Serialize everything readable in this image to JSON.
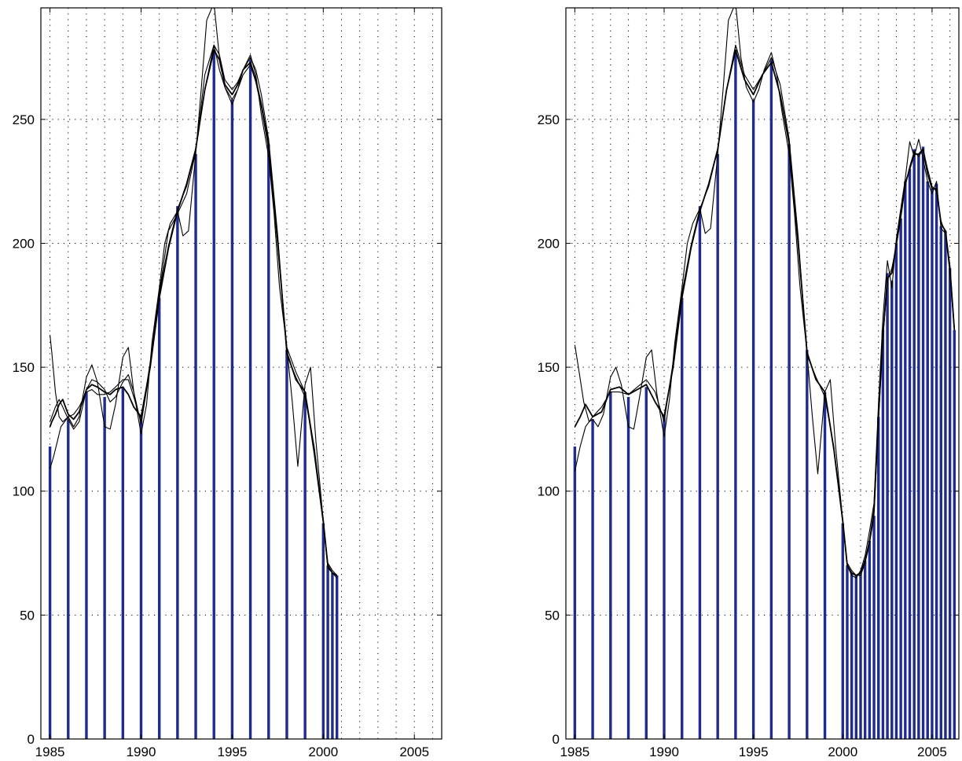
{
  "colors": {
    "bar": "#1f2b8e",
    "curve": "#000000",
    "grid": "#000000",
    "background": "#ffffff"
  },
  "chart_data": [
    {
      "type": "bar",
      "title": "",
      "xlabel": "",
      "ylabel": "",
      "xlim": [
        1984.5,
        2006.5
      ],
      "ylim": [
        0,
        295
      ],
      "xticks": [
        1985,
        1990,
        1995,
        2000,
        2005
      ],
      "xtick_labels": [
        "1985",
        "1990",
        "1995",
        "2000",
        "2005"
      ],
      "yticks": [
        0,
        50,
        100,
        150,
        200,
        250
      ],
      "ytick_labels": [
        "0",
        "50",
        "100",
        "150",
        "200",
        "250"
      ],
      "grid": true,
      "bars": {
        "x": [
          1985,
          1986,
          1987,
          1988,
          1989,
          1990,
          1991,
          1992,
          1993,
          1994,
          1995,
          1996,
          1997,
          1998,
          1999,
          2000,
          2000.25,
          2000.5,
          2000.75
        ],
        "values": [
          118,
          129,
          140,
          138,
          142,
          130,
          178,
          215,
          236,
          278,
          258,
          274,
          240,
          157,
          140,
          87,
          70,
          67,
          66
        ]
      },
      "series": [
        {
          "x": [
            1985,
            1985.1,
            1985.3,
            1985.5,
            1985.7,
            1986,
            1986.3,
            1986.6,
            1987,
            1987.3,
            1987.6,
            1988,
            1988.3,
            1988.6,
            1989,
            1989.3,
            1989.6,
            1990,
            1990.5,
            1991,
            1991.5,
            1992,
            1992.5,
            1993,
            1993.5,
            1994,
            1994.3,
            1994.6,
            1995,
            1995.3,
            1995.6,
            1996,
            1996.3,
            1996.6,
            1997,
            1997.5,
            1998,
            1998.5,
            1999,
            1999.5,
            2000,
            2000.25,
            2000.5,
            2000.75
          ],
          "values": [
            126,
            128,
            131,
            135,
            137,
            131,
            129,
            132,
            141,
            143,
            142,
            140,
            139,
            141,
            142,
            139,
            134,
            130,
            150,
            178,
            198,
            213,
            224,
            238,
            262,
            278,
            274,
            264,
            260,
            264,
            270,
            273,
            266,
            256,
            240,
            200,
            156,
            145,
            140,
            117,
            88,
            70,
            67,
            66
          ]
        },
        {
          "x": [
            1985,
            1985.2,
            1985.4,
            1985.6,
            1985.8,
            1986,
            1986.3,
            1986.6,
            1987,
            1987.3,
            1987.6,
            1988,
            1988.3,
            1988.6,
            1989,
            1989.3,
            1989.6,
            1990,
            1990.5,
            1991,
            1991.5,
            1992,
            1992.5,
            1993,
            1993.5,
            1994,
            1994.3,
            1994.6,
            1995,
            1995.3,
            1995.6,
            1996,
            1996.3,
            1996.6,
            1997,
            1997.5,
            1998,
            1998.5,
            1999,
            1999.5,
            2000,
            2000.25,
            2000.5,
            2000.75
          ],
          "values": [
            109,
            114,
            120,
            126,
            128,
            130,
            131,
            134,
            140,
            141,
            139,
            139,
            140,
            142,
            145,
            145,
            138,
            128,
            152,
            180,
            199,
            214,
            223,
            238,
            262,
            280,
            276,
            266,
            262,
            265,
            270,
            275,
            270,
            260,
            242,
            203,
            155,
            146,
            138,
            118,
            87,
            71,
            68,
            66
          ]
        },
        {
          "x": [
            1985,
            1985.1,
            1985.3,
            1985.5,
            1985.7,
            1986,
            1986.3,
            1986.6,
            1987,
            1987.3,
            1987.6,
            1988,
            1988.3,
            1988.6,
            1989,
            1989.3,
            1989.6,
            1990,
            1990.5,
            1991,
            1991.5,
            1992,
            1992.5,
            1993,
            1993.5,
            1994,
            1994.3,
            1994.6,
            1995,
            1995.3,
            1995.6,
            1996,
            1996.3,
            1996.6,
            1997,
            1997.5,
            1998,
            1998.5,
            1999,
            1999.5,
            2000,
            2000.25,
            2000.5,
            2000.75
          ],
          "values": [
            128,
            130,
            134,
            137,
            134,
            129,
            125,
            128,
            141,
            145,
            144,
            141,
            136,
            138,
            144,
            147,
            140,
            127,
            150,
            180,
            205,
            212,
            220,
            237,
            268,
            280,
            270,
            263,
            258,
            262,
            268,
            272,
            265,
            255,
            238,
            199,
            158,
            148,
            140,
            115,
            87,
            69,
            67,
            65
          ]
        },
        {
          "x": [
            1985,
            1985.1,
            1985.3,
            1985.5,
            1985.7,
            1986,
            1986.3,
            1986.6,
            1987,
            1987.3,
            1987.6,
            1988,
            1988.3,
            1988.6,
            1989,
            1989.3,
            1989.6,
            1990,
            1990.3,
            1990.6,
            1991,
            1991.3,
            1991.6,
            1992,
            1992.3,
            1992.6,
            1993,
            1993.3,
            1993.6,
            1994,
            1994.3,
            1994.6,
            1995,
            1995.3,
            1995.6,
            1996,
            1996.3,
            1996.6,
            1997,
            1997.3,
            1997.6,
            1998,
            1998.3,
            1998.6,
            1999,
            1999.3,
            1999.6,
            2000,
            2000.25,
            2000.5,
            2000.75
          ],
          "values": [
            163,
            156,
            140,
            130,
            128,
            130,
            126,
            130,
            146,
            151,
            144,
            126,
            125,
            135,
            154,
            158,
            140,
            123,
            135,
            160,
            182,
            200,
            208,
            213,
            203,
            205,
            236,
            262,
            290,
            297,
            275,
            263,
            256,
            262,
            270,
            276,
            268,
            252,
            235,
            212,
            182,
            158,
            136,
            110,
            143,
            150,
            120,
            88,
            70,
            67,
            66
          ]
        }
      ]
    },
    {
      "type": "bar",
      "title": "",
      "xlabel": "",
      "ylabel": "",
      "xlim": [
        1984.5,
        2006.5
      ],
      "ylim": [
        0,
        295
      ],
      "xticks": [
        1985,
        1990,
        1995,
        2000,
        2005
      ],
      "xtick_labels": [
        "1985",
        "1990",
        "1995",
        "2000",
        "2005"
      ],
      "yticks": [
        0,
        50,
        100,
        150,
        200,
        250
      ],
      "ytick_labels": [
        "0",
        "50",
        "100",
        "150",
        "200",
        "250"
      ],
      "grid": true,
      "bars": {
        "x": [
          1985,
          1986,
          1987,
          1988,
          1989,
          1990,
          1991,
          1992,
          1993,
          1994,
          1995,
          1996,
          1997,
          1998,
          1999,
          2000,
          2000.25,
          2000.5,
          2000.75,
          2001,
          2001.25,
          2001.5,
          2001.75,
          2002,
          2002.25,
          2002.5,
          2002.75,
          2003,
          2003.25,
          2003.5,
          2003.75,
          2004,
          2004.25,
          2004.5,
          2004.75,
          2005,
          2005.25,
          2005.5,
          2005.75,
          2006,
          2006.25
        ],
        "values": [
          118,
          129,
          140,
          138,
          142,
          130,
          178,
          215,
          236,
          278,
          258,
          274,
          240,
          157,
          140,
          87,
          70,
          67,
          66,
          67,
          72,
          80,
          90,
          130,
          165,
          188,
          185,
          200,
          210,
          225,
          230,
          238,
          236,
          239,
          225,
          222,
          224,
          207,
          205,
          190,
          165
        ]
      },
      "series": [
        {
          "x": [
            1985,
            1985.3,
            1985.6,
            1986,
            1986.5,
            1987,
            1987.5,
            1988,
            1988.5,
            1989,
            1989.5,
            1990,
            1990.5,
            1991,
            1991.5,
            1992,
            1992.5,
            1993,
            1993.5,
            1994,
            1994.5,
            1995,
            1995.5,
            1996,
            1996.5,
            1997,
            1997.5,
            1998,
            1998.5,
            1999,
            1999.5,
            2000,
            2000.25,
            2000.5,
            2000.75,
            2001,
            2001.25,
            2001.5,
            2001.75,
            2002,
            2002.25,
            2002.5,
            2002.75,
            2003,
            2003.25,
            2003.5,
            2003.75,
            2004,
            2004.25,
            2004.5,
            2004.75,
            2005,
            2005.25,
            2005.5,
            2005.75,
            2006,
            2006.25
          ],
          "values": [
            126,
            130,
            135,
            130,
            132,
            141,
            142,
            139,
            141,
            143,
            136,
            130,
            150,
            178,
            198,
            213,
            224,
            238,
            262,
            278,
            266,
            260,
            268,
            273,
            260,
            240,
            200,
            156,
            145,
            140,
            117,
            88,
            70,
            67,
            66,
            67,
            72,
            80,
            92,
            130,
            163,
            186,
            188,
            200,
            212,
            224,
            230,
            236,
            236,
            238,
            228,
            222,
            222,
            208,
            205,
            190,
            165
          ]
        },
        {
          "x": [
            1985,
            1985.3,
            1985.6,
            1986,
            1986.5,
            1987,
            1987.5,
            1988,
            1988.5,
            1989,
            1989.5,
            1990,
            1990.5,
            1991,
            1991.5,
            1992,
            1992.5,
            1993,
            1993.5,
            1994,
            1994.5,
            1995,
            1995.5,
            1996,
            1996.5,
            1997,
            1997.5,
            1998,
            1998.5,
            1999,
            1999.5,
            2000,
            2000.25,
            2000.5,
            2000.75,
            2001,
            2001.25,
            2001.5,
            2001.75,
            2002,
            2002.25,
            2002.5,
            2002.75,
            2003,
            2003.25,
            2003.5,
            2003.75,
            2004,
            2004.25,
            2004.5,
            2004.75,
            2005,
            2005.25,
            2005.5,
            2005.75,
            2006,
            2006.25
          ],
          "values": [
            108,
            118,
            126,
            130,
            134,
            140,
            140,
            139,
            142,
            145,
            140,
            128,
            152,
            180,
            199,
            214,
            223,
            238,
            262,
            280,
            268,
            262,
            268,
            275,
            264,
            242,
            203,
            155,
            146,
            138,
            118,
            87,
            71,
            68,
            66,
            66,
            71,
            79,
            90,
            128,
            162,
            185,
            190,
            199,
            210,
            223,
            231,
            237,
            235,
            238,
            230,
            223,
            221,
            209,
            204,
            191,
            166
          ]
        },
        {
          "x": [
            1985,
            1985.2,
            1985.5,
            1985.8,
            1986,
            1986.3,
            1986.6,
            1987,
            1987.3,
            1987.6,
            1988,
            1988.3,
            1988.6,
            1989,
            1989.3,
            1989.6,
            1990,
            1990.3,
            1990.6,
            1991,
            1991.3,
            1991.6,
            1992,
            1992.3,
            1992.6,
            1993,
            1993.3,
            1993.6,
            1994,
            1994.3,
            1994.6,
            1995,
            1995.3,
            1995.6,
            1996,
            1996.3,
            1996.6,
            1997,
            1997.3,
            1997.6,
            1998,
            1998.3,
            1998.6,
            1999,
            1999.3,
            1999.6,
            2000,
            2000.25,
            2000.5,
            2000.75,
            2001,
            2001.25,
            2001.5,
            2001.75,
            2002,
            2002.25,
            2002.5,
            2002.75,
            2003,
            2003.25,
            2003.5,
            2003.75,
            2004,
            2004.25,
            2004.5,
            2004.75,
            2005,
            2005.25,
            2005.5,
            2005.75,
            2006,
            2006.25
          ],
          "values": [
            159,
            150,
            136,
            128,
            129,
            126,
            131,
            146,
            150,
            143,
            126,
            125,
            137,
            154,
            157,
            139,
            122,
            137,
            160,
            182,
            200,
            208,
            214,
            204,
            206,
            236,
            262,
            290,
            297,
            275,
            263,
            257,
            262,
            270,
            277,
            268,
            253,
            236,
            212,
            183,
            156,
            130,
            107,
            140,
            145,
            118,
            88,
            70,
            66,
            65,
            68,
            74,
            84,
            95,
            135,
            170,
            193,
            182,
            202,
            214,
            226,
            241,
            235,
            242,
            234,
            225,
            220,
            225,
            206,
            204,
            188,
            165
          ]
        }
      ]
    }
  ]
}
